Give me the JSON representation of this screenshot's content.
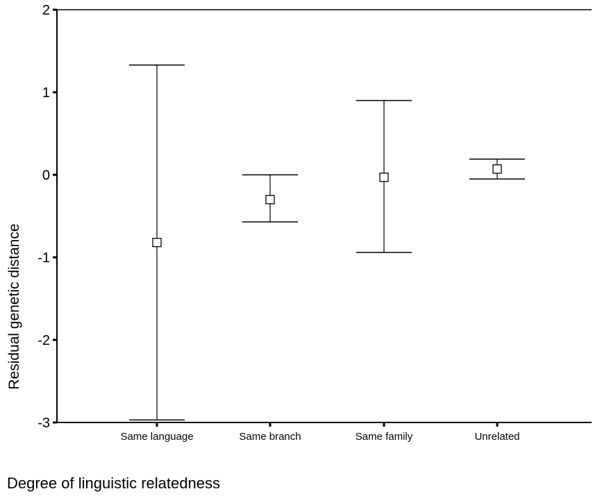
{
  "chart_data": {
    "type": "errorbar",
    "categories": [
      "Same language",
      "Same branch",
      "Same family",
      "Unrelated"
    ],
    "series": [
      {
        "mean": [
          -0.82,
          -0.3,
          -0.03,
          0.07
        ],
        "lower": [
          -2.97,
          -0.57,
          -0.94,
          -0.05
        ],
        "upper": [
          1.33,
          0.0,
          0.9,
          0.19
        ]
      }
    ],
    "xlabel": "Degree of linguistic relatedness",
    "ylabel": "Residual genetic distance",
    "ylim": [
      -3,
      2
    ],
    "yticks": [
      2,
      1,
      0,
      -1,
      -2,
      -3
    ],
    "ytick_labels": [
      "2",
      "1",
      "0",
      "-1",
      "-2",
      "-3"
    ],
    "grid": false,
    "legend": "none",
    "colors": {
      "line": "#000000",
      "marker_fill": "#ffffff"
    }
  }
}
